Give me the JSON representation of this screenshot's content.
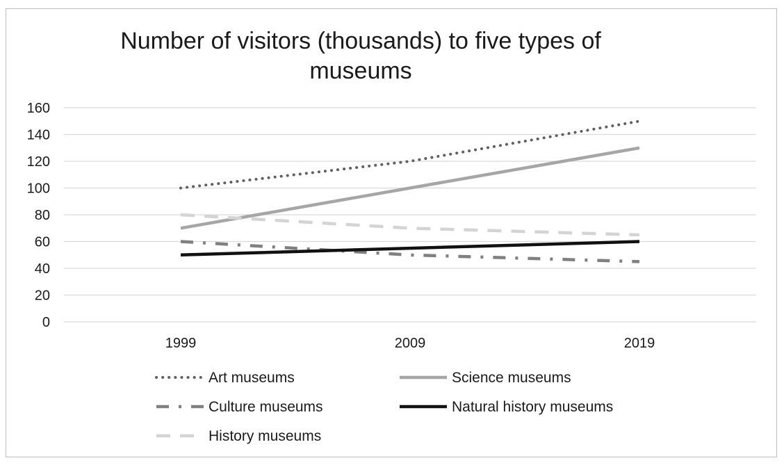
{
  "chart_data": {
    "type": "line",
    "title_line1": "Number of visitors (thousands) to five types of",
    "title_line2": "museums",
    "categories": [
      "1999",
      "2009",
      "2019"
    ],
    "ylim": [
      0,
      160
    ],
    "yticks": [
      "0",
      "20",
      "40",
      "60",
      "80",
      "100",
      "120",
      "140",
      "160"
    ],
    "grid": true,
    "legend_position": "bottom",
    "series": [
      {
        "name": "Art museums",
        "values": [
          100,
          120,
          150
        ],
        "color": "#5f5f5f",
        "style": "dotted"
      },
      {
        "name": "Science museums",
        "values": [
          70,
          100,
          130
        ],
        "color": "#a6a6a6",
        "style": "solid"
      },
      {
        "name": "Culture museums",
        "values": [
          60,
          50,
          45
        ],
        "color": "#808080",
        "style": "dash-dot"
      },
      {
        "name": "Natural history museums",
        "values": [
          50,
          55,
          60
        ],
        "color": "#111111",
        "style": "solid"
      },
      {
        "name": "History museums",
        "values": [
          80,
          70,
          65
        ],
        "color": "#d4d4d4",
        "style": "dashed"
      }
    ]
  }
}
